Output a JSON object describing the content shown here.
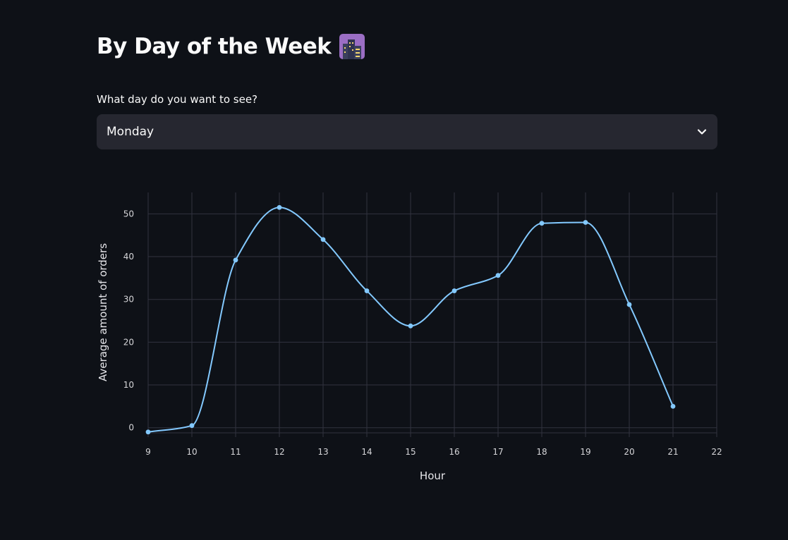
{
  "header": {
    "title": "By Day of the Week",
    "icon": "night-city-icon"
  },
  "day_select": {
    "label": "What day do you want to see?",
    "value": "Monday"
  },
  "colors": {
    "background": "#0e1117",
    "line": "#83c9ff",
    "grid": "#31333f",
    "select_bg": "#262730"
  },
  "chart_data": {
    "type": "line",
    "title": "",
    "xlabel": "Hour",
    "ylabel": "Average amount of orders",
    "x": [
      9,
      10,
      11,
      12,
      13,
      14,
      15,
      16,
      17,
      18,
      19,
      20,
      21
    ],
    "values": [
      -1,
      0.5,
      39.2,
      51.5,
      44,
      32,
      23.8,
      32,
      35.6,
      47.8,
      48,
      28.8,
      5
    ],
    "xlim": [
      9,
      22
    ],
    "ylim": [
      -1.2,
      55
    ],
    "xticks": [
      9,
      10,
      11,
      12,
      13,
      14,
      15,
      16,
      17,
      18,
      19,
      20,
      21,
      22
    ],
    "yticks": [
      0,
      10,
      20,
      30,
      40,
      50
    ],
    "grid": true,
    "legend": "none"
  }
}
